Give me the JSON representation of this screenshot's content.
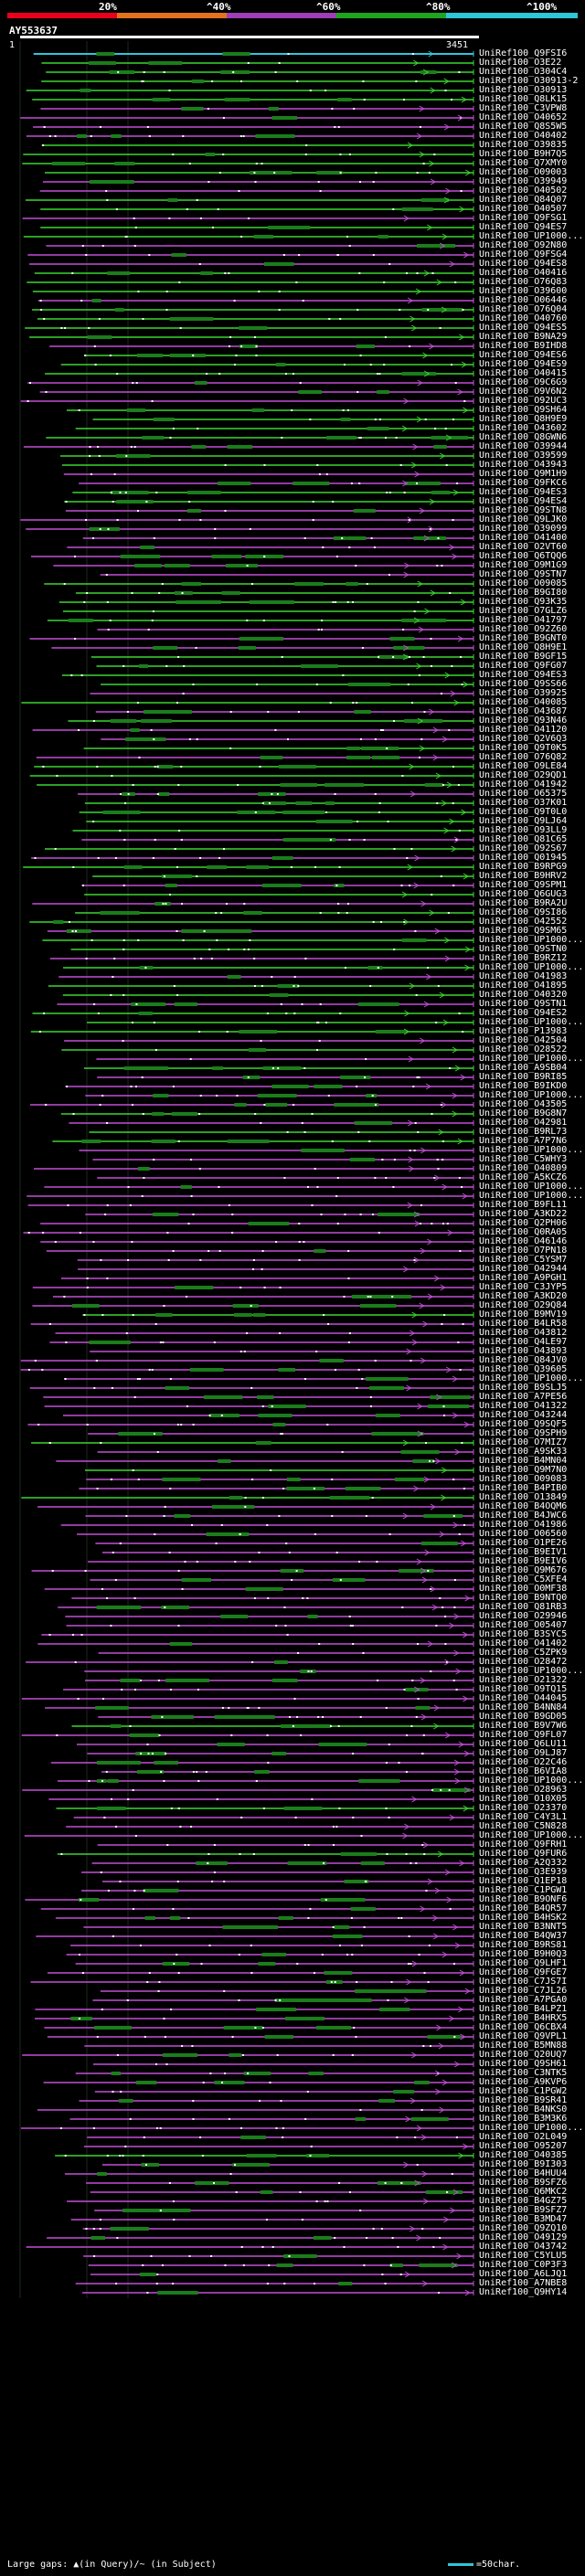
{
  "legend": {
    "ticks": [
      "20%",
      "^40%",
      "^60%",
      "^80%",
      "^100%"
    ],
    "segments": [
      {
        "color": "#e8001c",
        "range": "0-20"
      },
      {
        "color": "#e2721e",
        "range": "20-40"
      },
      {
        "color": "#9d3fb5",
        "range": "40-60"
      },
      {
        "color": "#1fa41f",
        "range": "60-80"
      },
      {
        "color": "#2ec6d8",
        "range": "80-100"
      }
    ]
  },
  "query": {
    "title": "AY553637",
    "start": "1",
    "end": "3451"
  },
  "colors": {
    "cyan": "#2ec6d8",
    "green": "#3ad62f",
    "purple": "#c24fd6",
    "orange": "#e2721e",
    "dark_green": "#1b7d1b"
  },
  "hits": [
    "UniRef100_Q9FSI6",
    "UniRef100_O3E22",
    "UniRef100_O304C4",
    "UniRef100_O30913-2",
    "UniRef100_O30913",
    "UniRef100_Q8LK15",
    "UniRef100_C3VPW8",
    "UniRef100_O40652",
    "UniRef100_Q8S5W5",
    "UniRef100_O40402",
    "UniRef100_O39835",
    "UniRef100_B9H7Q5",
    "UniRef100_Q7XMY0",
    "UniRef100_O09003",
    "UniRef100_O39949",
    "UniRef100_O40502",
    "UniRef100_Q84Q07",
    "UniRef100_O40507",
    "UniRef100_Q9FSG1",
    "UniRef100_Q94ES7",
    "UniRef100_UP1000...",
    "UniRef100_O92N80",
    "UniRef100_Q9FSG4",
    "UniRef100_Q94ES8",
    "UniRef100_O40416",
    "UniRef100_O76Q83",
    "UniRef100_O39600",
    "UniRef100_O06446",
    "UniRef100_O76Q04",
    "UniRef100_O40760",
    "UniRef100_Q94ES5",
    "UniRef100_B9NA29",
    "UniRef100_B9IHD8",
    "UniRef100_Q94ES6",
    "UniRef100_Q94ES9",
    "UniRef100_O40415",
    "UniRef100_O9C6G9",
    "UniRef100_O9V6N2",
    "UniRef100_O92UC3",
    "UniRef100_Q9SH64",
    "UniRef100_Q8H9E9",
    "UniRef100_O43602",
    "UniRef100_Q8GWN6",
    "UniRef100_O39944",
    "UniRef100_O39599",
    "UniRef100_O43943",
    "UniRef100_Q9M1H9",
    "UniRef100_Q9FKC6",
    "UniRef100_Q94ES3",
    "UniRef100_Q94ES4",
    "UniRef100_Q9STN8",
    "UniRef100_Q9LJK0",
    "UniRef100_O39099",
    "UniRef100_O41400",
    "UniRef100_O2VT60",
    "UniRef100_Q6TQQ6",
    "UniRef100_O9M1G9",
    "UniRef100_Q9STN7",
    "UniRef100_O09085",
    "UniRef100_B9GI80",
    "UniRef100_Q93K35",
    "UniRef100_O7GLZ6",
    "UniRef100_O41797",
    "UniRef100_O92Z60",
    "UniRef100_B9GNT0",
    "UniRef100_Q8H9E1",
    "UniRef100_B9GF15",
    "UniRef100_Q9FG07",
    "UniRef100_Q94ES3",
    "UniRef100_Q9SS66",
    "UniRef100_O39925",
    "UniRef100_O40085",
    "UniRef100_O43687",
    "UniRef100_Q93N46",
    "UniRef100_O41120",
    "UniRef100_Q2V6Q3",
    "UniRef100_Q9T0K5",
    "UniRef100_O76Q82",
    "UniRef100_O9LE84",
    "UniRef100_O29QD1",
    "UniRef100_O41942",
    "UniRef100_O65375",
    "UniRef100_O37K01",
    "UniRef100_Q9T0L0",
    "UniRef100_Q9LJ64",
    "UniRef100_O93LL9",
    "UniRef100_Q81C65",
    "UniRef100_O92S67",
    "UniRef100_Q01945",
    "UniRef100_B9RPG9",
    "UniRef100_B9HRV2",
    "UniRef100_Q9SPM1",
    "UniRef100_Q6GUG3",
    "UniRef100_B9RA2U",
    "UniRef100_Q9SI86",
    "UniRef100_O42552",
    "UniRef100_Q9SM65",
    "UniRef100_UP1000...",
    "UniRef100_Q9STN0",
    "UniRef100_B9RZ12",
    "UniRef100_UP1000...",
    "UniRef100_O41983",
    "UniRef100_O41895",
    "UniRef100_O40320",
    "UniRef100_Q9STN1",
    "UniRef100_Q94ES2",
    "UniRef100_UP1000...",
    "UniRef100_P13983",
    "UniRef100_O42504",
    "UniRef100_O28522",
    "UniRef100_UP1000...",
    "UniRef100_A9SB04",
    "UniRef100_B9RI85",
    "UniRef100_B9IKD0",
    "UniRef100_UP1000...",
    "UniRef100_O43505",
    "UniRef100_B9G8N7",
    "UniRef100_O42981",
    "UniRef100_B9RL73",
    "UniRef100_A7P7N6",
    "UniRef100_UP1000...",
    "UniRef100_C5WHY3",
    "UniRef100_O40809",
    "UniRef100_A5KCZ6",
    "UniRef100_UP1000...",
    "UniRef100_UP1000...",
    "UniRef100_B9FL11",
    "UniRef100_A3KD22",
    "UniRef100_Q2PH06",
    "UniRef100_Q0RA05",
    "UniRef100_O46146",
    "UniRef100_O7PN18",
    "UniRef100_C5YSM7",
    "UniRef100_O42944",
    "UniRef100_A9PGH1",
    "UniRef100_C3JYP5",
    "UniRef100_A3KD20",
    "UniRef100_O29Q84",
    "UniRef100_B9MV19",
    "UniRef100_B4LR58",
    "UniRef100_O43812",
    "UniRef100_Q4LE97",
    "UniRef100_O43893",
    "UniRef100_Q84JV0",
    "UniRef100_Q39605",
    "UniRef100_UP1000...",
    "UniRef100_B9SLJ5",
    "UniRef100_A7PE56",
    "UniRef100_O41322",
    "UniRef100_O43244",
    "UniRef100_Q9SQF5",
    "UniRef100_Q9SPH9",
    "UniRef100_O7MIZ7",
    "UniRef100_A9SK33",
    "UniRef100_B4MN04",
    "UniRef100_Q9M7N0",
    "UniRef100_O09083",
    "UniRef100_B4PIB0",
    "UniRef100_O13849",
    "UniRef100_B4OQM6",
    "UniRef100_B4JWC6",
    "UniRef100_O41986",
    "UniRef100_O06560",
    "UniRef100_O1PE26",
    "UniRef100_B9EIV1",
    "UniRef100_B9EIV6",
    "UniRef100_Q9M676",
    "UniRef100_C5XFE4",
    "UniRef100_O0MF38",
    "UniRef100_B9NTQ0",
    "UniRef100_Q81RB3",
    "UniRef100_O29946",
    "UniRef100_O05407",
    "UniRef100_B3SYC5",
    "UniRef100_O41402",
    "UniRef100_C5ZPK9",
    "UniRef100_O28472",
    "UniRef100_UP1000...",
    "UniRef100_O21322",
    "UniRef100_O9TQ15",
    "UniRef100_O44045",
    "UniRef100_B4NN84",
    "UniRef100_B9GD05",
    "UniRef100_B9V7W6",
    "UniRef100_Q9FL07",
    "UniRef100_Q6LU11",
    "UniRef100_O9LJ87",
    "UniRef100_O22C46",
    "UniRef100_B6VIA8",
    "UniRef100_UP1000...",
    "UniRef100_O28963",
    "UniRef100_O10X05",
    "UniRef100_O23370",
    "UniRef100_C4Y3L1",
    "UniRef100_C5N828",
    "UniRef100_UP1000...",
    "UniRef100_Q9FRH1",
    "UniRef100_Q9FUR6",
    "UniRef100_A2Q332",
    "UniRef100_Q3E939",
    "UniRef100_Q1EP18",
    "UniRef100_C1PGW1",
    "UniRef100_B9ONF6",
    "UniRef100_B4QR57",
    "UniRef100_B4HSK2",
    "UniRef100_B3NNT5",
    "UniRef100_B4QW37",
    "UniRef100_B9RS81",
    "UniRef100_B9H0Q3",
    "UniRef100_Q9LHF1",
    "UniRef100_Q9FGE7",
    "UniRef100_C7JS7I",
    "UniRef100_C7JL26",
    "UniRef100_A7PGA0",
    "UniRef100_B4LPZ1",
    "UniRef100_B4HRX5",
    "UniRef100_Q6CBX4",
    "UniRef100_Q9VPL1",
    "UniRef100_B5MN88",
    "UniRef100_Q20UQ7",
    "UniRef100_Q9SH61",
    "UniRef100_C3NTK5",
    "UniRef100_A9KVP6",
    "UniRef100_C1PGW2",
    "UniRef100_B9SR41",
    "UniRef100_B4NKS0",
    "UniRef100_B3M3K6",
    "UniRef100_UP1000...",
    "UniRef100_O2L049",
    "UniRef100_O95207",
    "UniRef100_O40385",
    "UniRef100_B9I303",
    "UniRef100_B4HUU4",
    "UniRef100_B9SFZ6",
    "UniRef100_Q6MKC2",
    "UniRef100_B4GZ75",
    "UniRef100_B9SFZ7",
    "UniRef100_B3MD47",
    "UniRef100_Q9ZQ10",
    "UniRef100_O49129",
    "UniRef100_O43742",
    "UniRef100_C5YLU5",
    "UniRef100_C0P3F3",
    "UniRef100_A6LJQ1",
    "UniRef100_A7NBE8",
    "UniRef100_Q9HY14"
  ],
  "footer": {
    "text": "Large gaps: ▲(in Query)/~ (in Subject)",
    "key_label": "=50char."
  }
}
